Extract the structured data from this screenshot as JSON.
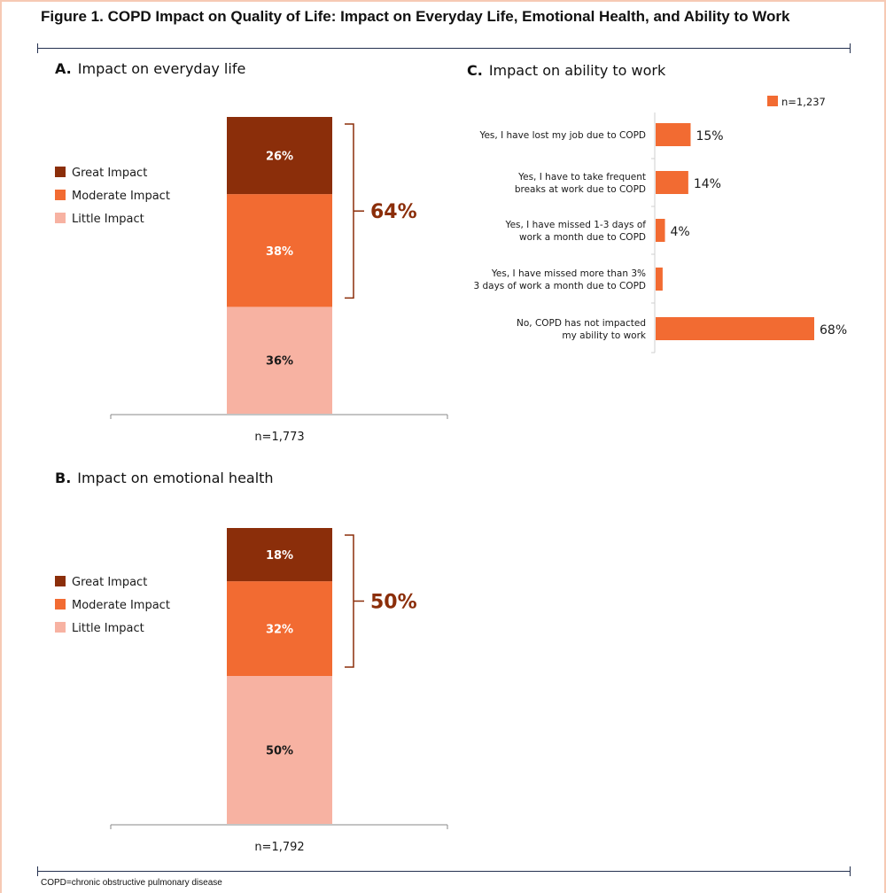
{
  "figure": {
    "title": "Figure 1. COPD Impact on Quality of Life: Impact on Everyday Life, Emotional Health, and Ability to Work",
    "footnote": "COPD=chronic obstructive pulmonary disease"
  },
  "colors": {
    "great": "#8b2e0a",
    "moderate": "#f26b32",
    "little": "#f7b2a2",
    "bracket": "#8b2e0a",
    "axis": "#8a8a8a"
  },
  "chart_data": [
    {
      "type": "bar",
      "stacked": true,
      "panel_letter": "A.",
      "title": "Impact on everyday life",
      "categories": [
        "n=1,773"
      ],
      "series": [
        {
          "name": "Little Impact",
          "values": [
            36
          ],
          "color": "#f7b2a2"
        },
        {
          "name": "Moderate Impact",
          "values": [
            38
          ],
          "color": "#f26b32"
        },
        {
          "name": "Great Impact",
          "values": [
            26
          ],
          "color": "#8b2e0a"
        }
      ],
      "legend_order": [
        "Great Impact",
        "Moderate Impact",
        "Little Impact"
      ],
      "legend_position": "left",
      "data_labels": [
        "36%",
        "38%",
        "26%"
      ],
      "bracket_label": "64%",
      "ylim": [
        0,
        100
      ],
      "grid": false
    },
    {
      "type": "bar",
      "stacked": true,
      "panel_letter": "B.",
      "title": "Impact on emotional health",
      "categories": [
        "n=1,792"
      ],
      "series": [
        {
          "name": "Little Impact",
          "values": [
            50
          ],
          "color": "#f7b2a2"
        },
        {
          "name": "Moderate Impact",
          "values": [
            32
          ],
          "color": "#f26b32"
        },
        {
          "name": "Great Impact",
          "values": [
            18
          ],
          "color": "#8b2e0a"
        }
      ],
      "legend_order": [
        "Great Impact",
        "Moderate Impact",
        "Little Impact"
      ],
      "legend_position": "left",
      "data_labels": [
        "50%",
        "32%",
        "18%"
      ],
      "bracket_label": "50%",
      "ylim": [
        0,
        100
      ],
      "grid": false
    },
    {
      "type": "bar",
      "orientation": "horizontal",
      "panel_letter": "C.",
      "title": "Impact on ability to work",
      "categories": [
        [
          "Yes, I have lost my job due to COPD"
        ],
        [
          "Yes, I have to take frequent",
          "breaks at work due to COPD"
        ],
        [
          "Yes, I have missed 1-3 days of",
          "work a month due to COPD"
        ],
        [
          "Yes, I have missed more than 3%",
          "3 days of work a month due to COPD"
        ],
        [
          "No, COPD has not impacted",
          "my ability to work"
        ]
      ],
      "series": [
        {
          "name": "n=1,237",
          "values": [
            15,
            14,
            4,
            3,
            68
          ],
          "color": "#f26b32"
        }
      ],
      "data_labels": [
        "15%",
        "14%",
        "4%",
        "",
        "68%"
      ],
      "legend_position": "top-right",
      "xlim": [
        0,
        68
      ],
      "grid": false
    }
  ]
}
